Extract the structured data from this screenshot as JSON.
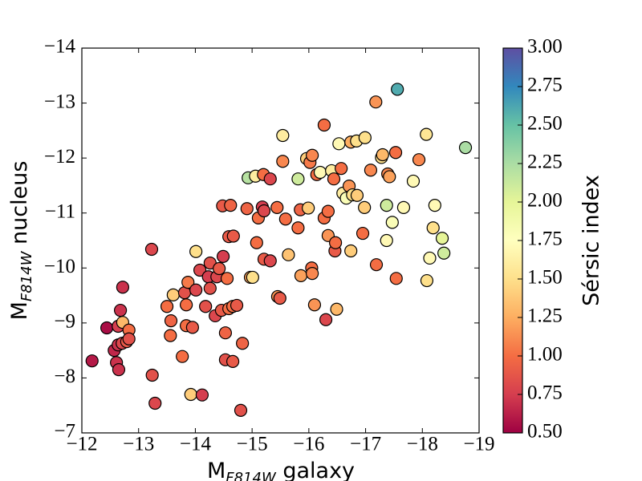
{
  "chart_data": {
    "type": "scatter",
    "xlabel": {
      "main": "M",
      "sub": "F814W",
      "rest": " galaxy"
    },
    "ylabel": {
      "main": "M",
      "sub": "F814W",
      "rest": " nucleus"
    },
    "colorbar_label": "Sérsic index",
    "xlim": [
      -12,
      -19
    ],
    "ylim": [
      -7,
      -14
    ],
    "xticks": [
      {
        "value": -12,
        "label": "−12"
      },
      {
        "value": -13,
        "label": "−13"
      },
      {
        "value": -14,
        "label": "−14"
      },
      {
        "value": -15,
        "label": "−15"
      },
      {
        "value": -16,
        "label": "−16"
      },
      {
        "value": -17,
        "label": "−17"
      },
      {
        "value": -18,
        "label": "−18"
      },
      {
        "value": -19,
        "label": "−19"
      }
    ],
    "yticks": [
      {
        "value": -7,
        "label": "−7"
      },
      {
        "value": -8,
        "label": "−8"
      },
      {
        "value": -9,
        "label": "−9"
      },
      {
        "value": -10,
        "label": "−10"
      },
      {
        "value": -11,
        "label": "−11"
      },
      {
        "value": -12,
        "label": "−12"
      },
      {
        "value": -13,
        "label": "−13"
      },
      {
        "value": -14,
        "label": "−14"
      }
    ],
    "clim": [
      0.5,
      3.0
    ],
    "cticks": [
      {
        "value": 0.5,
        "label": "0.50"
      },
      0.75,
      {
        "value": 1.0,
        "label": "1.00"
      },
      1.25,
      {
        "value": 1.5,
        "label": "1.50"
      },
      1.75,
      {
        "value": 2.0,
        "label": "2.00"
      },
      2.25,
      {
        "value": 2.5,
        "label": "2.50"
      },
      2.75,
      {
        "value": 3.0,
        "label": "3.00"
      }
    ],
    "colormap": [
      "#9e0142",
      "#d53e4f",
      "#f46d43",
      "#fdae61",
      "#fee08b",
      "#ffffbf",
      "#e6f598",
      "#abdda4",
      "#66c2a5",
      "#3288bd",
      "#5e4fa2"
    ],
    "x": [
      -12.18,
      -12.44,
      -12.57,
      -12.64,
      -12.64,
      -12.71,
      -12.72,
      -12.61,
      -12.65,
      -12.68,
      -12.72,
      -12.79,
      -12.83,
      -12.83,
      -13.24,
      -13.23,
      -13.29,
      -13.5,
      -13.56,
      -13.57,
      -13.61,
      -13.77,
      -13.81,
      -13.84,
      -13.87,
      -13.84,
      -13.92,
      -13.95,
      -14.01,
      -14.01,
      -14.08,
      -14.12,
      -14.18,
      -14.23,
      -14.26,
      -14.26,
      -14.35,
      -14.38,
      -14.42,
      -14.46,
      -14.49,
      -14.48,
      -14.53,
      -14.53,
      -14.56,
      -14.59,
      -14.59,
      -14.62,
      -14.66,
      -14.66,
      -14.67,
      -14.73,
      -14.8,
      -14.83,
      -14.91,
      -14.93,
      -14.97,
      -15.01,
      -15.06,
      -15.08,
      -15.11,
      -15.18,
      -15.2,
      -15.21,
      -15.21,
      -15.32,
      -15.32,
      -15.44,
      -15.45,
      -15.49,
      -15.54,
      -15.54,
      -15.59,
      -15.64,
      -15.81,
      -15.81,
      -15.85,
      -15.86,
      -15.96,
      -15.99,
      -16.02,
      -16.05,
      -16.06,
      -16.06,
      -16.1,
      -16.14,
      -16.2,
      -16.27,
      -16.27,
      -16.3,
      -16.34,
      -16.34,
      -16.4,
      -16.44,
      -16.46,
      -16.47,
      -16.49,
      -16.53,
      -16.57,
      -16.6,
      -16.66,
      -16.71,
      -16.74,
      -16.74,
      -16.77,
      -16.84,
      -16.85,
      -16.95,
      -16.98,
      -16.99,
      -17.09,
      -17.18,
      -17.19,
      -17.28,
      -17.3,
      -17.37,
      -17.37,
      -17.39,
      -17.42,
      -17.47,
      -17.53,
      -17.54,
      -17.56,
      -17.67,
      -17.84,
      -17.94,
      -18.07,
      -18.08,
      -18.13,
      -18.19,
      -18.22,
      -18.35,
      -18.38,
      -18.76
    ],
    "values": [
      -8.31,
      -8.91,
      -8.5,
      -8.94,
      -8.6,
      -8.63,
      -9.01,
      -8.28,
      -8.15,
      -9.23,
      -9.65,
      -8.66,
      -8.87,
      -8.71,
      -8.05,
      -10.34,
      -7.54,
      -9.3,
      -8.77,
      -9.04,
      -9.51,
      -8.39,
      -9.55,
      -9.33,
      -9.74,
      -8.95,
      -7.7,
      -8.92,
      -10.3,
      -9.6,
      -9.96,
      -7.69,
      -9.3,
      -9.84,
      -10.09,
      -9.63,
      -9.13,
      -9.84,
      -9.99,
      -9.23,
      -10.21,
      -11.13,
      -8.33,
      -8.82,
      -9.81,
      -10.57,
      -9.26,
      -11.14,
      -8.3,
      -9.3,
      -10.58,
      -9.32,
      -7.41,
      -8.63,
      -11.08,
      -11.64,
      -9.83,
      -9.83,
      -11.67,
      -10.46,
      -10.91,
      -11.11,
      -11.7,
      -11.04,
      -10.16,
      -11.62,
      -10.13,
      -11.1,
      -9.48,
      -9.45,
      -12.41,
      -11.94,
      -10.89,
      -10.24,
      -11.62,
      -10.73,
      -11.06,
      -9.86,
      -11.99,
      -11.09,
      -11.92,
      -10.0,
      -9.9,
      -12.05,
      -9.33,
      -11.7,
      -11.74,
      -12.6,
      -10.91,
      -9.06,
      -11.03,
      -10.59,
      -11.77,
      -11.62,
      -10.31,
      -10.46,
      -9.25,
      -12.26,
      -11.81,
      -11.36,
      -11.27,
      -11.49,
      -12.29,
      -10.31,
      -11.33,
      -12.31,
      -11.32,
      -10.63,
      -11.1,
      -12.37,
      -11.78,
      -13.02,
      -10.06,
      -12.01,
      -12.06,
      -11.14,
      -10.5,
      -11.71,
      -11.66,
      -10.83,
      -12.1,
      -9.81,
      -13.25,
      -11.1,
      -11.58,
      -11.97,
      -12.43,
      -9.77,
      -10.18,
      -10.73,
      -11.14,
      -10.54,
      -10.27,
      -12.19
    ],
    "c": [
      0.6,
      0.55,
      0.65,
      0.75,
      0.7,
      0.8,
      1.3,
      0.7,
      0.7,
      0.7,
      0.7,
      0.9,
      1.0,
      0.85,
      0.85,
      0.8,
      0.8,
      1.0,
      1.0,
      0.95,
      1.4,
      1.0,
      0.85,
      1.0,
      1.05,
      1.0,
      1.4,
      0.9,
      1.5,
      0.8,
      0.8,
      0.75,
      0.85,
      0.75,
      0.85,
      0.85,
      0.8,
      0.8,
      0.9,
      0.9,
      0.75,
      0.9,
      0.85,
      0.95,
      1.0,
      0.9,
      1.0,
      0.95,
      0.9,
      1.0,
      0.9,
      0.9,
      0.85,
      0.95,
      0.95,
      2.2,
      1.2,
      1.5,
      1.6,
      1.0,
      1.0,
      0.75,
      1.0,
      0.8,
      0.9,
      0.8,
      0.8,
      1.0,
      1.15,
      0.9,
      1.6,
      1.1,
      1.0,
      1.35,
      2.1,
      1.0,
      0.95,
      1.2,
      1.4,
      1.4,
      1.05,
      1.0,
      1.1,
      1.1,
      1.15,
      1.0,
      1.7,
      1.0,
      1.0,
      0.8,
      1.0,
      1.15,
      1.6,
      1.0,
      0.9,
      1.0,
      1.3,
      1.7,
      1.0,
      1.6,
      1.8,
      1.15,
      1.25,
      1.4,
      1.5,
      1.5,
      1.4,
      1.0,
      1.4,
      1.5,
      1.1,
      1.15,
      1.0,
      1.5,
      1.3,
      2.1,
      1.7,
      1.1,
      1.2,
      1.8,
      1.0,
      1.0,
      2.6,
      1.7,
      1.7,
      1.1,
      1.55,
      1.5,
      1.7,
      1.5,
      1.7,
      2.0,
      2.1,
      2.25
    ]
  }
}
